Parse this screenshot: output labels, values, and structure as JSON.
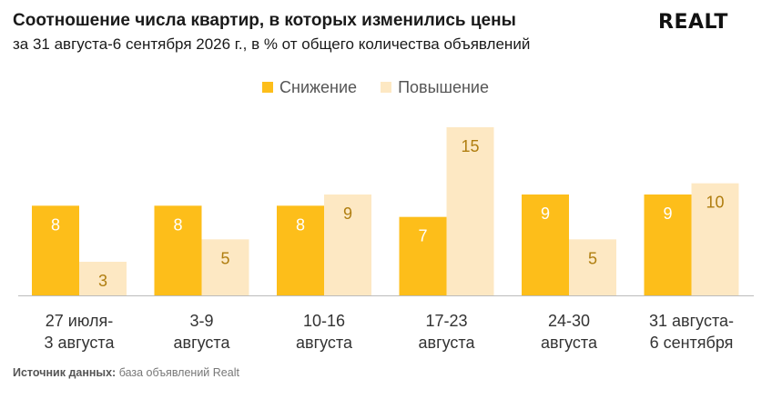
{
  "title": "Соотношение числа квартир, в которых изменились цены",
  "subtitle": "за 31 августа-6 сентября 2026 г., в % от общего количества объявлений",
  "logo": "REALT",
  "source": {
    "label": "Источник данных:",
    "text": "база объявлений Realt"
  },
  "colors": {
    "decrease": "#FDBE1A",
    "increase": "#FDE8C3",
    "axis": "#BBBBBB",
    "label_on_decrease": "#FFFFFF",
    "label_on_increase": "#B07E10"
  },
  "chart_data": {
    "type": "bar",
    "categories": [
      [
        "27 июля-",
        "3 августа"
      ],
      [
        "3-9",
        "августа"
      ],
      [
        "10-16",
        "августа"
      ],
      [
        "17-23",
        "августа"
      ],
      [
        "24-30",
        "августа"
      ],
      [
        "31 августа-",
        "6 сентября"
      ]
    ],
    "series": [
      {
        "name": "Снижение",
        "values": [
          8,
          8,
          8,
          7,
          9,
          9
        ]
      },
      {
        "name": "Повышение",
        "values": [
          3,
          5,
          9,
          15,
          5,
          10
        ]
      }
    ],
    "ylim": [
      0,
      15
    ],
    "legend": "top-center",
    "grid": false,
    "data_labels": true
  }
}
